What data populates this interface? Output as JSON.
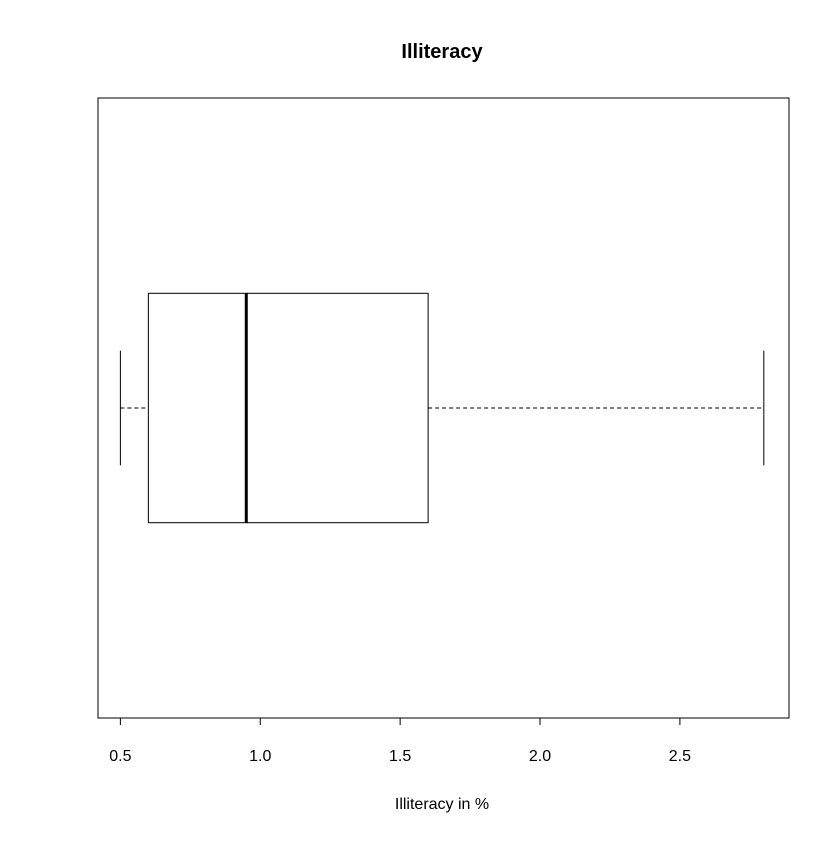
{
  "chart_data": {
    "type": "boxplot",
    "orientation": "horizontal",
    "title": "Illiteracy",
    "xlabel": "Illiteracy in %",
    "ylabel": "",
    "xlim": [
      0.42,
      2.89
    ],
    "grid": false,
    "legend": "none",
    "ticks": [
      {
        "value": 0.5,
        "label": "0.5"
      },
      {
        "value": 1.0,
        "label": "1.0"
      },
      {
        "value": 1.5,
        "label": "1.5"
      },
      {
        "value": 2.0,
        "label": "2.0"
      },
      {
        "value": 2.5,
        "label": "2.5"
      }
    ],
    "box": {
      "min": 0.5,
      "q1": 0.6,
      "median": 0.95,
      "q3": 1.6,
      "max": 2.8
    },
    "colors": {
      "line": "#000000",
      "box_fill": "#ffffff",
      "background": "#ffffff"
    }
  }
}
